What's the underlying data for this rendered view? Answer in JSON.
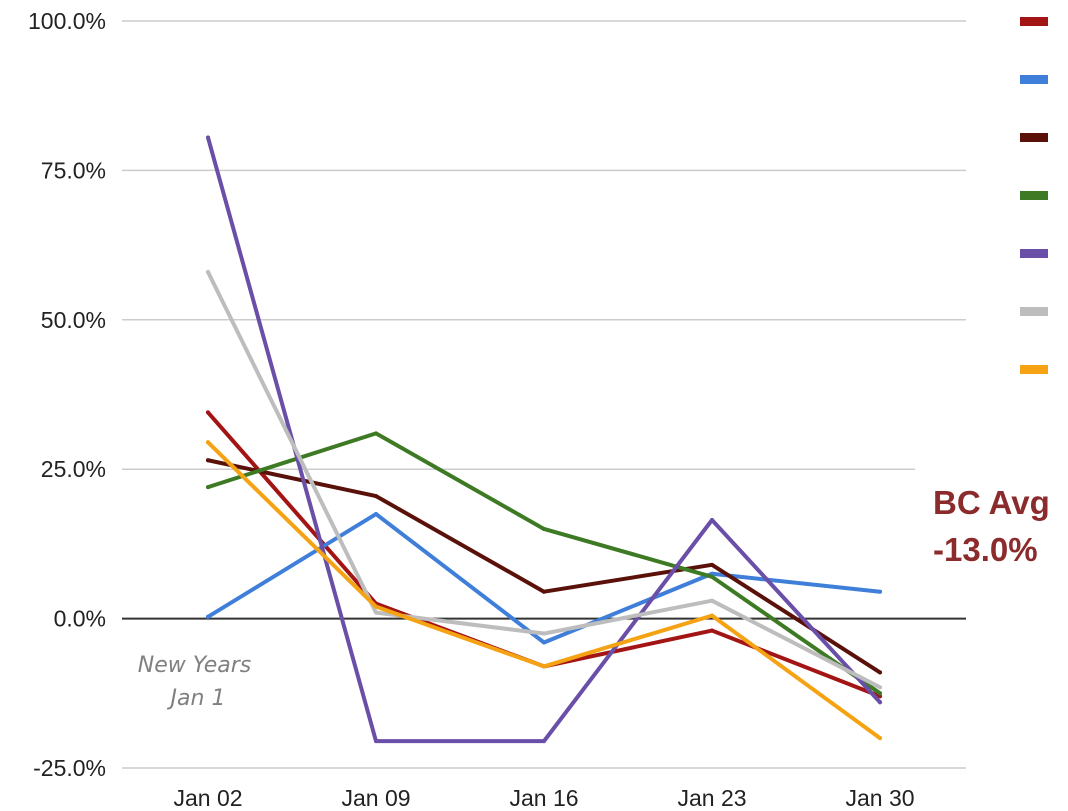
{
  "chart_data": {
    "type": "line",
    "title": "",
    "xlabel": "",
    "ylabel": "",
    "categories": [
      "Jan 02",
      "Jan 09",
      "Jan 16",
      "Jan 23",
      "Jan 30"
    ],
    "ylim": [
      -25,
      100
    ],
    "yticks": [
      100,
      75,
      50,
      25,
      0,
      -25
    ],
    "ytick_labels": [
      "100.0%",
      "75.0%",
      "50.0%",
      "25.0%",
      "0.0%",
      "-25.0%"
    ],
    "grid": true,
    "legend": "top-right",
    "series": [
      {
        "color": "#a31515",
        "values": [
          34.5,
          2.5,
          -8.0,
          -2.0,
          -13.0
        ]
      },
      {
        "color": "#3f7fd9",
        "values": [
          0.3,
          17.5,
          -4.0,
          7.5,
          4.5
        ]
      },
      {
        "color": "#5a1109",
        "values": [
          26.5,
          20.5,
          4.5,
          9.0,
          -9.0
        ]
      },
      {
        "color": "#3e7a24",
        "values": [
          22.0,
          31.0,
          15.0,
          7.0,
          -12.5
        ]
      },
      {
        "color": "#6a4fa8",
        "values": [
          80.5,
          -20.5,
          -20.5,
          16.5,
          -14.0
        ]
      },
      {
        "color": "#bdbdbd",
        "values": [
          58.0,
          1.0,
          -2.5,
          3.0,
          -11.5
        ]
      },
      {
        "color": "#f5a213",
        "values": [
          29.5,
          2.0,
          -8.0,
          0.5,
          -20.0
        ]
      }
    ],
    "annotations": [
      {
        "text_lines": [
          "New Years",
          "Jan 1"
        ]
      },
      {
        "text_lines": [
          "BC Avg",
          "-13.0%"
        ]
      }
    ]
  }
}
